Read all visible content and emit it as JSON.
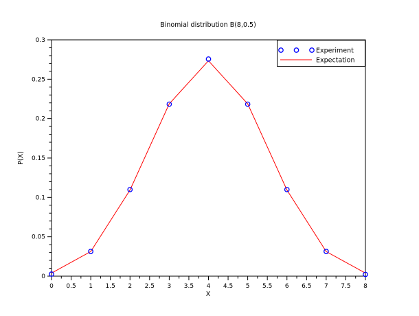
{
  "chart_data": {
    "type": "line",
    "title": "Binomial distribution B(8,0.5)",
    "xlabel": "X",
    "ylabel": "P(X)",
    "xlim": [
      0,
      8
    ],
    "ylim": [
      0,
      0.3
    ],
    "x_major_step": 0.5,
    "x_minor_step": 0.25,
    "y_major_step": 0.05,
    "y_minor_step": 0.01,
    "grid": "off",
    "legend_position": "top-right",
    "x": [
      0,
      1,
      2,
      3,
      4,
      5,
      6,
      7,
      8
    ],
    "series": [
      {
        "name": "Experiment",
        "style": "scatter",
        "marker": "open-circle",
        "color": "#0000ff",
        "values": [
          0.0026,
          0.0314,
          0.1099,
          0.2183,
          0.2756,
          0.2183,
          0.1099,
          0.0314,
          0.0022
        ]
      },
      {
        "name": "Expectation",
        "style": "line",
        "color": "#ff0000",
        "values": [
          0.0039,
          0.03125,
          0.109375,
          0.21875,
          0.273438,
          0.21875,
          0.109375,
          0.03125,
          0.0039
        ]
      }
    ],
    "axis_color": "#000000",
    "background_color": "#ffffff"
  }
}
